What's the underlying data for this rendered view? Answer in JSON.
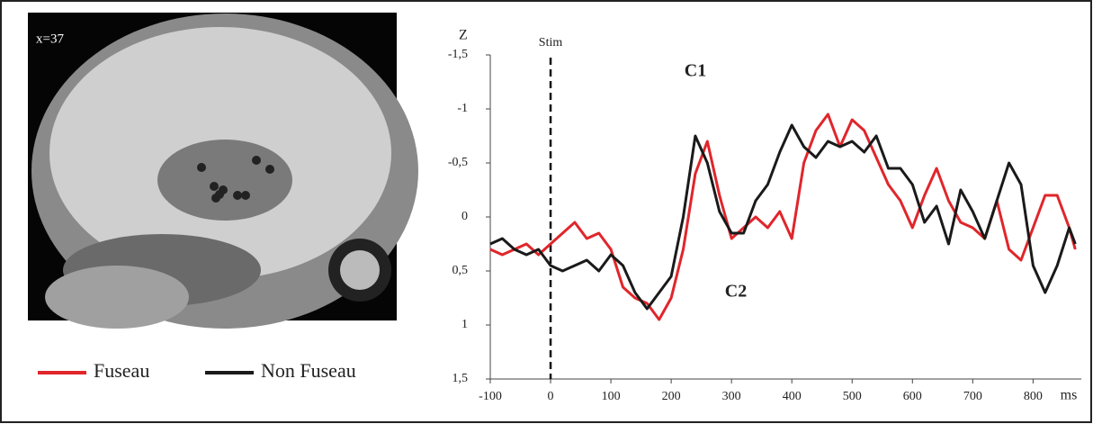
{
  "chart_data": {
    "type": "line",
    "panel_label": "x=37",
    "y_axis_label": "Z",
    "x_axis_label": "ms",
    "annotations": [
      "Stim",
      "C1",
      "C2"
    ],
    "stim_x": 0,
    "x": [
      -100,
      -80,
      -60,
      -40,
      -20,
      0,
      20,
      40,
      60,
      80,
      100,
      120,
      140,
      160,
      180,
      200,
      220,
      240,
      260,
      280,
      300,
      320,
      340,
      360,
      380,
      400,
      420,
      440,
      460,
      480,
      500,
      520,
      540,
      560,
      580,
      600,
      620,
      640,
      660,
      680,
      700,
      720,
      740,
      760,
      780,
      800,
      820,
      840,
      860,
      870
    ],
    "series": [
      {
        "name": "Fuseau",
        "color": "#e0262b",
        "values": [
          0.3,
          0.35,
          0.3,
          0.25,
          0.35,
          0.25,
          0.15,
          0.05,
          0.2,
          0.15,
          0.3,
          0.65,
          0.75,
          0.8,
          0.95,
          0.75,
          0.3,
          -0.4,
          -0.7,
          -0.2,
          0.2,
          0.1,
          0,
          0.1,
          -0.05,
          0.2,
          -0.5,
          -0.8,
          -0.95,
          -0.65,
          -0.9,
          -0.8,
          -0.55,
          -0.3,
          -0.15,
          0.1,
          -0.2,
          -0.45,
          -0.15,
          0.05,
          0.1,
          0.2,
          -0.15,
          0.3,
          0.4,
          0.1,
          -0.2,
          -0.2,
          0.1,
          0.3
        ]
      },
      {
        "name": "Non Fuseau",
        "color": "#1a1a1a",
        "values": [
          0.25,
          0.2,
          0.3,
          0.35,
          0.3,
          0.45,
          0.5,
          0.45,
          0.4,
          0.5,
          0.35,
          0.45,
          0.7,
          0.85,
          0.7,
          0.55,
          0,
          -0.75,
          -0.5,
          -0.05,
          0.15,
          0.15,
          -0.15,
          -0.3,
          -0.6,
          -0.85,
          -0.65,
          -0.55,
          -0.7,
          -0.65,
          -0.7,
          -0.6,
          -0.75,
          -0.45,
          -0.45,
          -0.3,
          0.05,
          -0.1,
          0.25,
          -0.25,
          -0.05,
          0.2,
          -0.15,
          -0.5,
          -0.3,
          0.45,
          0.7,
          0.45,
          0.1,
          0.25
        ]
      }
    ],
    "xlim": [
      -100,
      880
    ],
    "ylim": [
      -1.5,
      1.5
    ],
    "y_inverted": true,
    "xticks": [
      -100,
      0,
      100,
      200,
      300,
      400,
      500,
      600,
      700,
      800
    ],
    "yticks": [
      {
        "value": -1.5,
        "label": "-1,5"
      },
      -1,
      {
        "value": -0.5,
        "label": "-0,5"
      },
      0,
      {
        "value": 0.5,
        "label": "0,5"
      },
      1,
      {
        "value": 1.5,
        "label": "1,5"
      }
    ]
  }
}
